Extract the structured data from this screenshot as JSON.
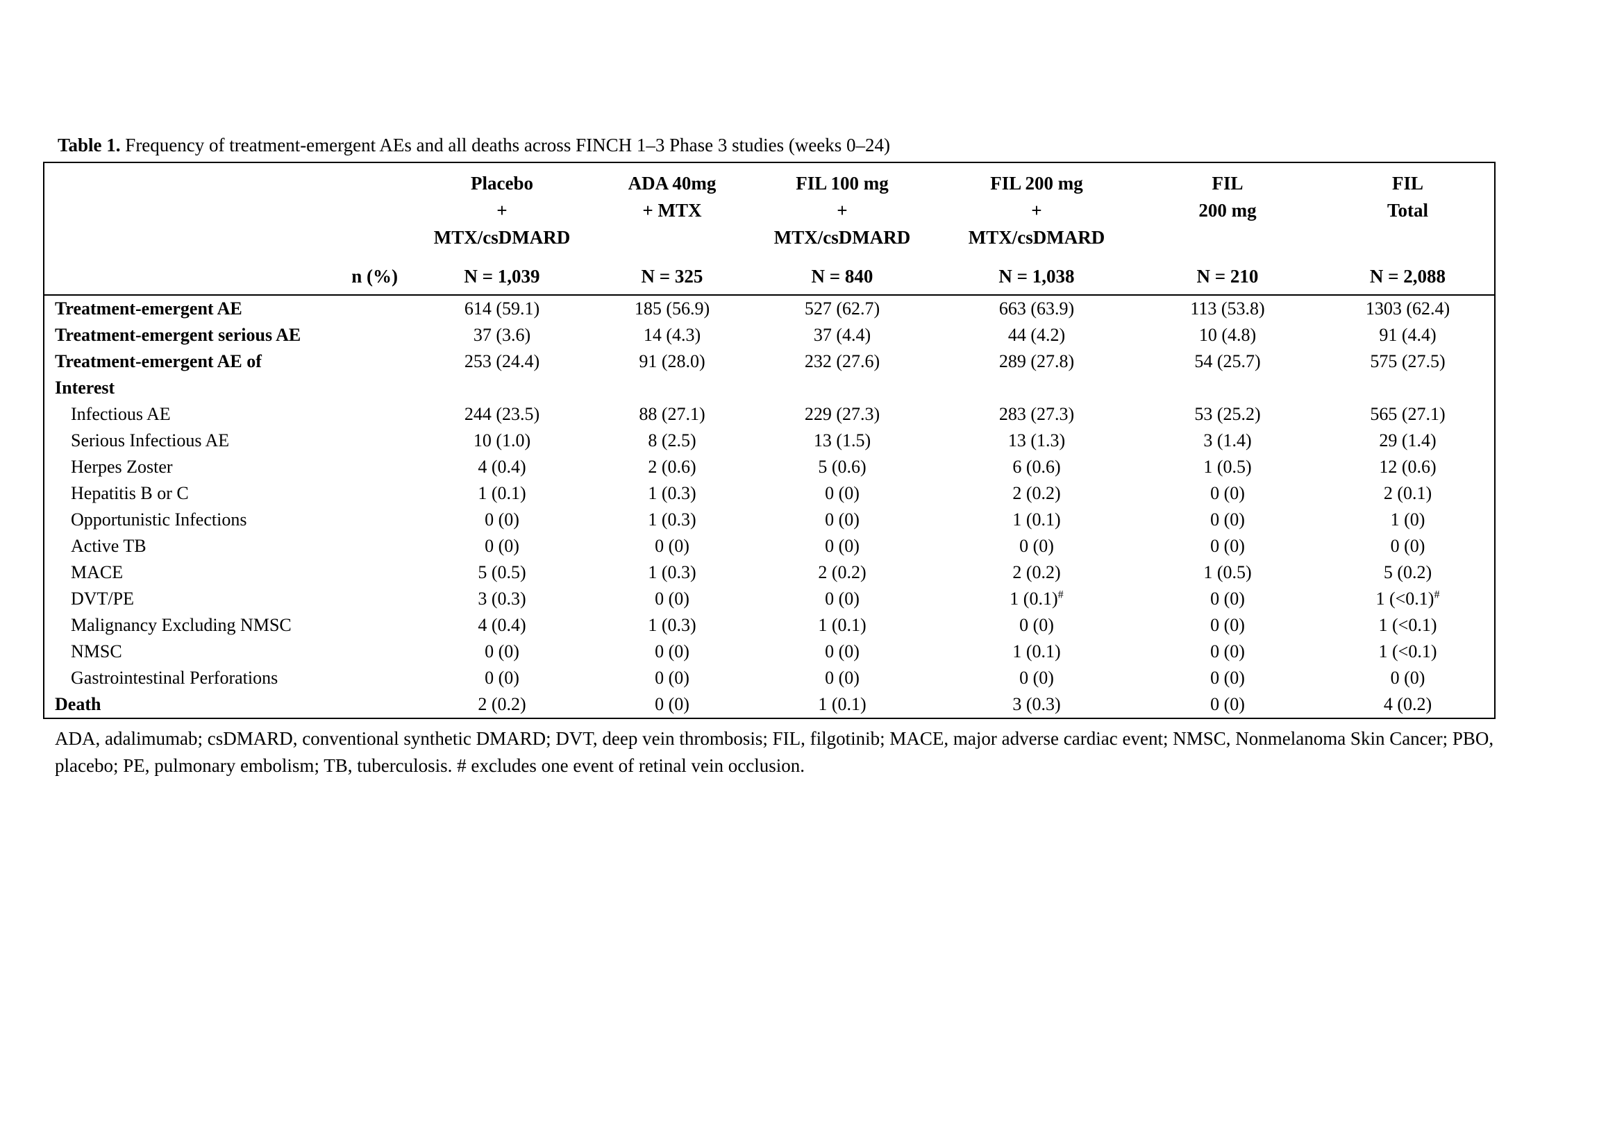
{
  "title": {
    "caption_label": "Table 1.",
    "caption_text": " Frequency of treatment-emergent AEs and all deaths across FINCH 1–3 Phase 3 studies (weeks 0–24)"
  },
  "table": {
    "columns": [
      "Placebo\n+\nMTX/csDMARD",
      "ADA 40mg\n+ MTX",
      "FIL 100 mg\n+\nMTX/csDMARD",
      "FIL 200 mg\n+\nMTX/csDMARD",
      "FIL\n200 mg",
      "FIL\nTotal"
    ],
    "n_label": "n (%)",
    "n_values": [
      "N = 1,039",
      "N = 325",
      "N = 840",
      "N = 1,038",
      "N = 210",
      "N = 2,088"
    ],
    "rows": [
      {
        "label": "Treatment-emergent AE",
        "bold": true,
        "indent": false,
        "values": [
          "614 (59.1)",
          "185 (56.9)",
          "527 (62.7)",
          "663 (63.9)",
          "113 (53.8)",
          "1303 (62.4)"
        ]
      },
      {
        "label": "Treatment-emergent serious AE",
        "bold": true,
        "indent": false,
        "values": [
          "37 (3.6)",
          "14 (4.3)",
          "37 (4.4)",
          "44 (4.2)",
          "10 (4.8)",
          "91 (4.4)"
        ]
      },
      {
        "label": "Treatment-emergent AE of\nInterest",
        "bold": true,
        "indent": false,
        "values": [
          "253 (24.4)",
          "91 (28.0)",
          "232 (27.6)",
          "289 (27.8)",
          "54 (25.7)",
          "575 (27.5)"
        ]
      },
      {
        "label": "Infectious AE",
        "bold": false,
        "indent": true,
        "values": [
          "244 (23.5)",
          "88 (27.1)",
          "229 (27.3)",
          "283 (27.3)",
          "53 (25.2)",
          "565 (27.1)"
        ]
      },
      {
        "label": "Serious Infectious AE",
        "bold": false,
        "indent": true,
        "values": [
          "10 (1.0)",
          "8 (2.5)",
          "13 (1.5)",
          "13 (1.3)",
          "3 (1.4)",
          "29 (1.4)"
        ]
      },
      {
        "label": "Herpes Zoster",
        "bold": false,
        "indent": true,
        "values": [
          "4 (0.4)",
          "2 (0.6)",
          "5 (0.6)",
          "6 (0.6)",
          "1 (0.5)",
          "12 (0.6)"
        ]
      },
      {
        "label": "Hepatitis B or C",
        "bold": false,
        "indent": true,
        "values": [
          "1 (0.1)",
          "1 (0.3)",
          "0 (0)",
          "2 (0.2)",
          "0 (0)",
          "2 (0.1)"
        ]
      },
      {
        "label": "Opportunistic Infections",
        "bold": false,
        "indent": true,
        "values": [
          "0 (0)",
          "1 (0.3)",
          "0 (0)",
          "1 (0.1)",
          "0 (0)",
          "1 (0)"
        ]
      },
      {
        "label": "Active TB",
        "bold": false,
        "indent": true,
        "values": [
          "0 (0)",
          "0 (0)",
          "0 (0)",
          "0 (0)",
          "0 (0)",
          "0 (0)"
        ]
      },
      {
        "label": "MACE",
        "bold": false,
        "indent": true,
        "values": [
          "5 (0.5)",
          "1 (0.3)",
          "2 (0.2)",
          "2 (0.2)",
          "1 (0.5)",
          "5 (0.2)"
        ]
      },
      {
        "label": "DVT/PE",
        "bold": false,
        "indent": true,
        "values": [
          "3 (0.3)",
          "0 (0)",
          "0 (0)",
          "1 (0.1)^#",
          "0 (0)",
          "1 (<0.1)^#"
        ]
      },
      {
        "label": "Malignancy Excluding NMSC",
        "bold": false,
        "indent": true,
        "values": [
          "4 (0.4)",
          "1 (0.3)",
          "1 (0.1)",
          "0 (0)",
          "0 (0)",
          "1 (<0.1)"
        ]
      },
      {
        "label": "NMSC",
        "bold": false,
        "indent": true,
        "values": [
          "0 (0)",
          "0 (0)",
          "0 (0)",
          "1 (0.1)",
          "0 (0)",
          "1 (<0.1)"
        ]
      },
      {
        "label": "Gastrointestinal Perforations",
        "bold": false,
        "indent": true,
        "values": [
          "0 (0)",
          "0 (0)",
          "0 (0)",
          "0 (0)",
          "0 (0)",
          "0 (0)"
        ]
      },
      {
        "label": "Death",
        "bold": true,
        "indent": false,
        "values": [
          "2 (0.2)",
          "0 (0)",
          "1 (0.1)",
          "3 (0.3)",
          "0 (0)",
          "4 (0.2)"
        ]
      }
    ]
  },
  "footnote": "ADA, adalimumab; csDMARD, conventional synthetic DMARD; DVT, deep vein thrombosis; FIL, filgotinib; MACE, major adverse cardiac event; NMSC, Nonmelanoma Skin Cancer; PBO, placebo; PE, pulmonary embolism; TB, tuberculosis. # excludes one event of retinal vein occlusion."
}
